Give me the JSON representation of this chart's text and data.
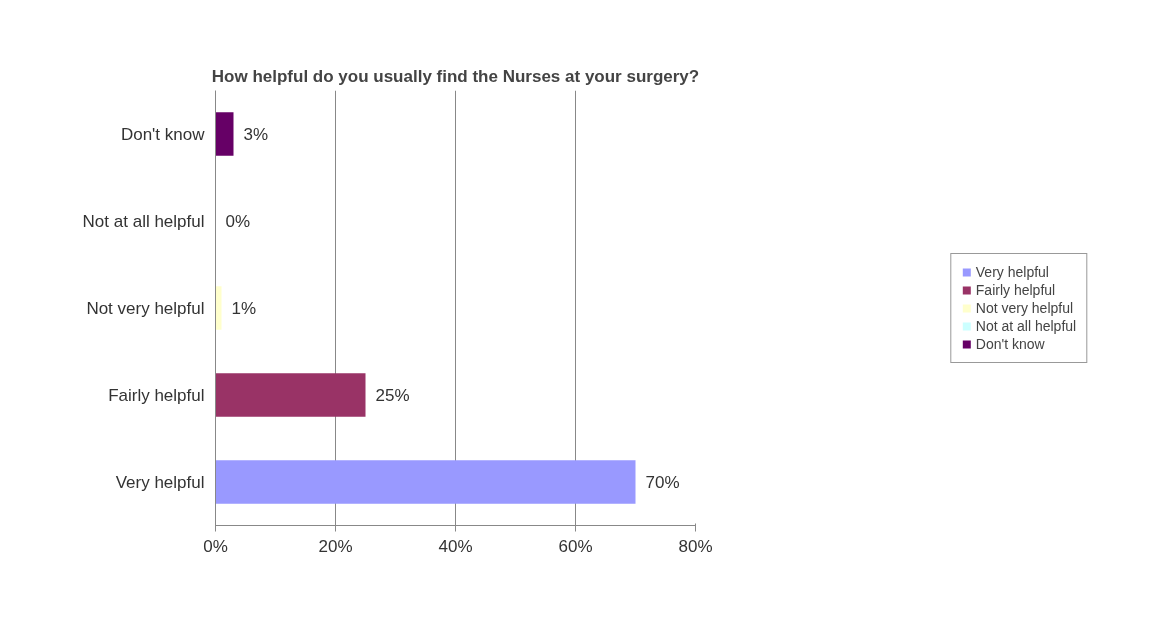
{
  "chart_data": {
    "type": "bar",
    "orientation": "horizontal",
    "title": "How helpful do you usually find the Nurses at your surgery?",
    "categories": [
      "Don't know",
      "Not at all helpful",
      "Not very helpful",
      "Fairly helpful",
      "Very helpful"
    ],
    "series": [
      {
        "name": "Very helpful",
        "color": "#9999ff",
        "values": [
          null,
          null,
          null,
          null,
          70
        ],
        "value_labels": [
          null,
          null,
          null,
          null,
          "70%"
        ]
      },
      {
        "name": "Fairly helpful",
        "color": "#993366",
        "values": [
          null,
          null,
          null,
          25,
          null
        ],
        "value_labels": [
          null,
          null,
          null,
          "25%",
          null
        ]
      },
      {
        "name": "Not very helpful",
        "color": "#ffffcc",
        "values": [
          null,
          null,
          1,
          null,
          null
        ],
        "value_labels": [
          null,
          null,
          "1%",
          null,
          null
        ]
      },
      {
        "name": "Not at all helpful",
        "color": "#ccffff",
        "values": [
          null,
          0,
          null,
          null,
          null
        ],
        "value_labels": [
          null,
          "0%",
          null,
          null,
          null
        ]
      },
      {
        "name": "Don't know",
        "color": "#660066",
        "values": [
          3,
          null,
          null,
          null,
          null
        ],
        "value_labels": [
          "3%",
          null,
          null,
          null,
          null
        ]
      }
    ],
    "xlim": [
      0,
      80
    ],
    "xticks": [
      {
        "value": 0,
        "label": "0%"
      },
      {
        "value": 20,
        "label": "20%"
      },
      {
        "value": 40,
        "label": "40%"
      },
      {
        "value": 60,
        "label": "60%"
      },
      {
        "value": 80,
        "label": "80%"
      }
    ],
    "grid": "x",
    "legend": "right"
  }
}
